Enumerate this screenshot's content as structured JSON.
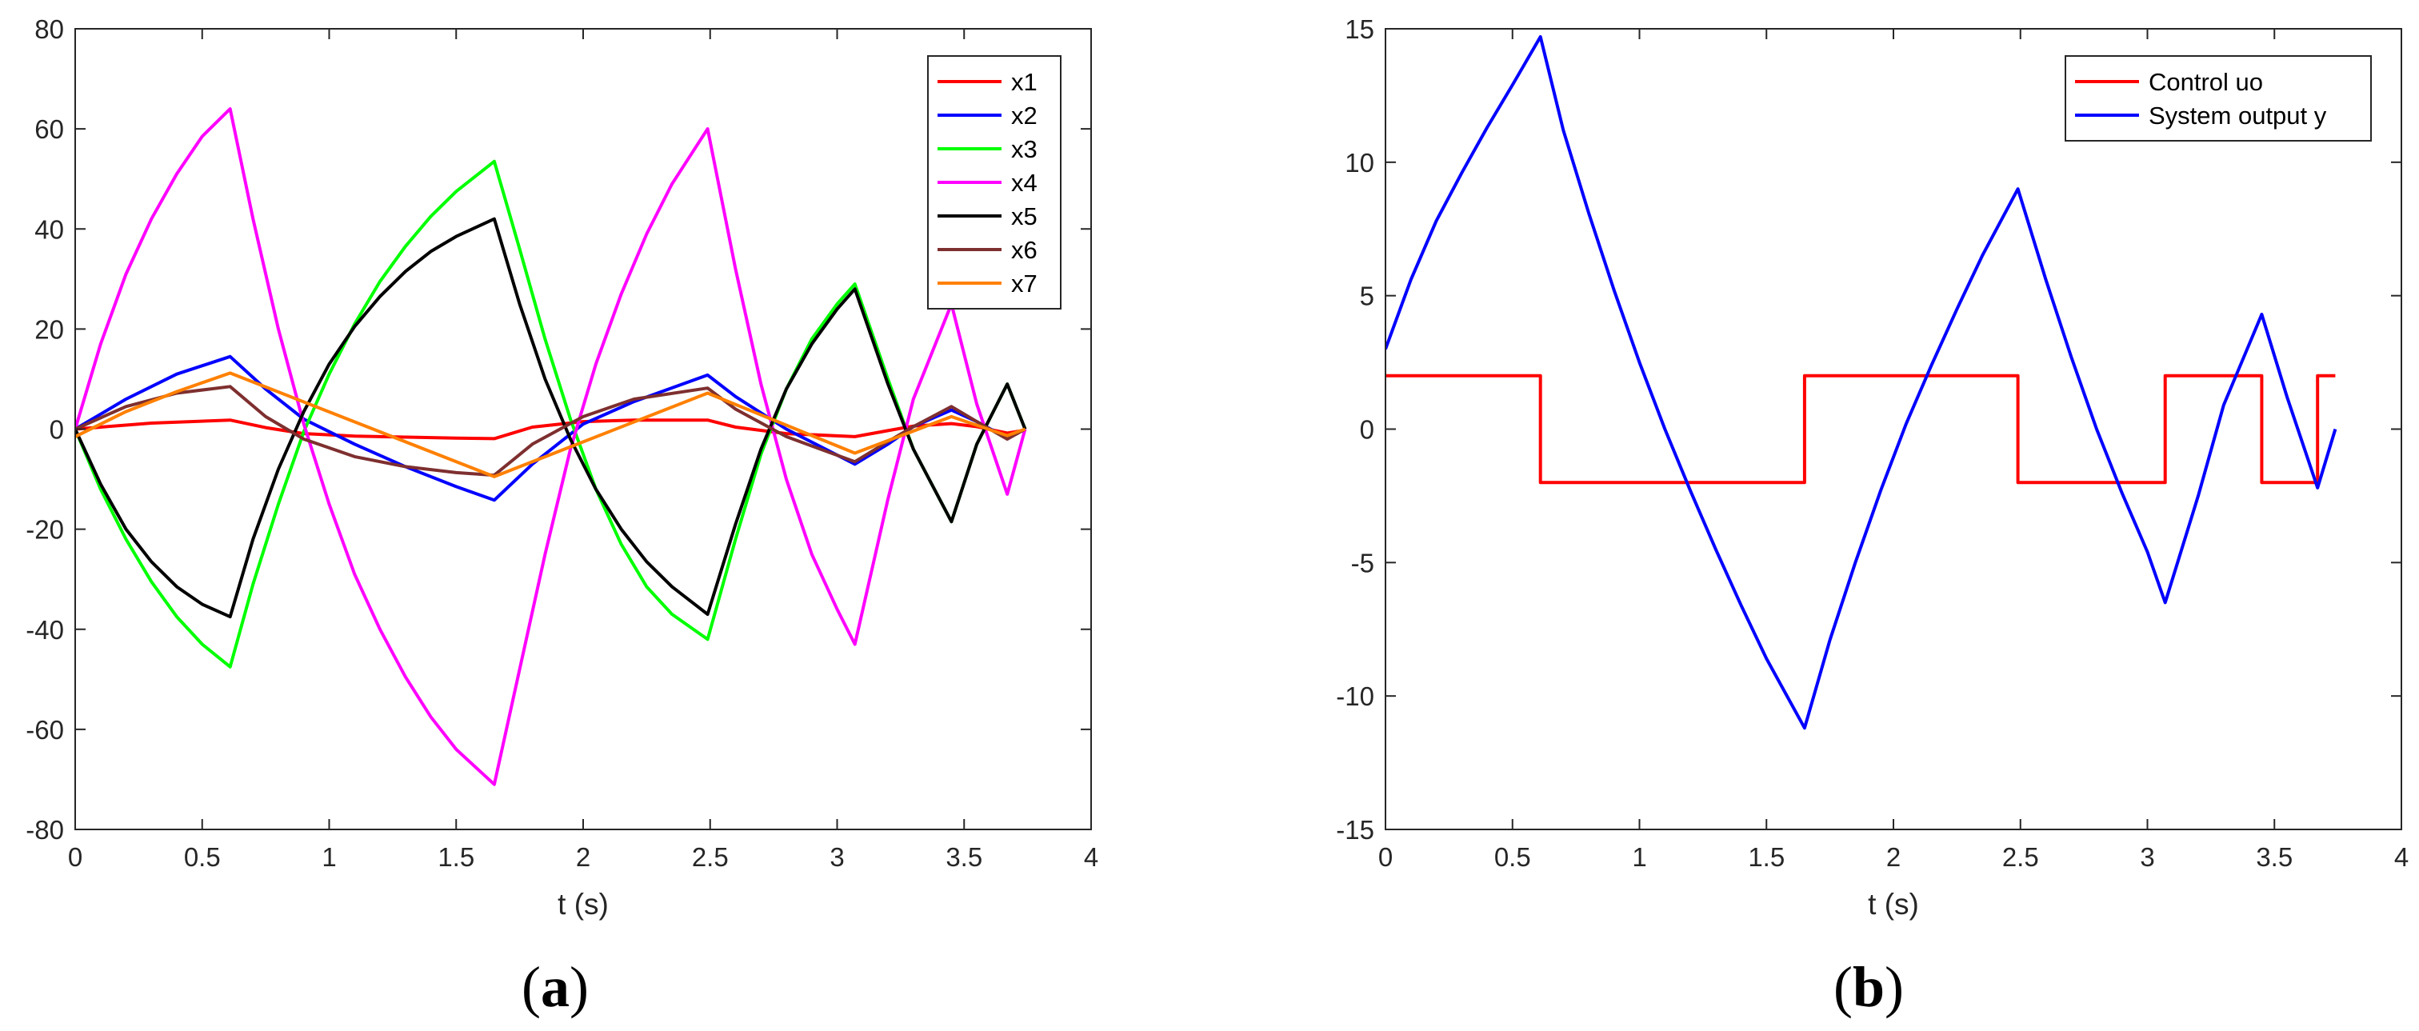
{
  "chart_data": [
    {
      "type": "line",
      "panel_label": "(a)",
      "title": "",
      "xlabel": "t (s)",
      "ylabel": "",
      "xlim": [
        0,
        4
      ],
      "ylim": [
        -80,
        80
      ],
      "xticks": [
        0,
        0.5,
        1,
        1.5,
        2,
        2.5,
        3,
        3.5,
        4
      ],
      "xtick_labels": [
        "0",
        "0.5",
        "1",
        "1.5",
        "2",
        "2.5",
        "3",
        "3.5",
        "4"
      ],
      "yticks": [
        -80,
        -60,
        -40,
        -20,
        0,
        20,
        40,
        60,
        80
      ],
      "ytick_labels": [
        "-80",
        "-60",
        "-40",
        "-20",
        "0",
        "20",
        "40",
        "60",
        "80"
      ],
      "grid": false,
      "legend_position": "top-right",
      "series": [
        {
          "name": "x1",
          "color": "#ff0000",
          "points": [
            [
              0,
              0
            ],
            [
              0.3,
              1.2
            ],
            [
              0.61,
              1.8
            ],
            [
              0.75,
              0.3
            ],
            [
              0.9,
              -0.9
            ],
            [
              1.1,
              -1.4
            ],
            [
              1.3,
              -1.6
            ],
            [
              1.5,
              -1.8
            ],
            [
              1.65,
              -1.9
            ],
            [
              1.8,
              0.4
            ],
            [
              2.0,
              1.5
            ],
            [
              2.2,
              1.8
            ],
            [
              2.49,
              1.8
            ],
            [
              2.6,
              0.4
            ],
            [
              2.8,
              -0.9
            ],
            [
              3.07,
              -1.5
            ],
            [
              3.2,
              -0.3
            ],
            [
              3.3,
              0.6
            ],
            [
              3.45,
              1.1
            ],
            [
              3.55,
              0.5
            ],
            [
              3.67,
              -0.8
            ],
            [
              3.74,
              -0.2
            ]
          ]
        },
        {
          "name": "x2",
          "color": "#0000ff",
          "points": [
            [
              0,
              0
            ],
            [
              0.2,
              6
            ],
            [
              0.4,
              11
            ],
            [
              0.61,
              14.5
            ],
            [
              0.75,
              8
            ],
            [
              0.9,
              2
            ],
            [
              1.1,
              -3
            ],
            [
              1.3,
              -7.5
            ],
            [
              1.5,
              -11.5
            ],
            [
              1.65,
              -14.2
            ],
            [
              1.8,
              -7
            ],
            [
              2.0,
              1
            ],
            [
              2.2,
              5.5
            ],
            [
              2.49,
              10.8
            ],
            [
              2.6,
              6.5
            ],
            [
              2.8,
              0
            ],
            [
              3.07,
              -7
            ],
            [
              3.2,
              -3
            ],
            [
              3.3,
              0.5
            ],
            [
              3.45,
              3.8
            ],
            [
              3.55,
              1.5
            ],
            [
              3.67,
              -1.8
            ],
            [
              3.74,
              0
            ]
          ]
        },
        {
          "name": "x3",
          "color": "#00ff00",
          "points": [
            [
              0,
              0
            ],
            [
              0.1,
              -12
            ],
            [
              0.2,
              -22
            ],
            [
              0.3,
              -30.5
            ],
            [
              0.4,
              -37.5
            ],
            [
              0.5,
              -43
            ],
            [
              0.61,
              -47.5
            ],
            [
              0.7,
              -31
            ],
            [
              0.8,
              -15
            ],
            [
              0.9,
              -0.5
            ],
            [
              1.0,
              11
            ],
            [
              1.1,
              21
            ],
            [
              1.2,
              29.5
            ],
            [
              1.3,
              36.5
            ],
            [
              1.4,
              42.5
            ],
            [
              1.5,
              47.5
            ],
            [
              1.65,
              53.5
            ],
            [
              1.75,
              36
            ],
            [
              1.85,
              18
            ],
            [
              1.95,
              2
            ],
            [
              2.05,
              -12
            ],
            [
              2.15,
              -23
            ],
            [
              2.25,
              -31.5
            ],
            [
              2.35,
              -37
            ],
            [
              2.49,
              -42
            ],
            [
              2.6,
              -22
            ],
            [
              2.7,
              -5
            ],
            [
              2.8,
              8
            ],
            [
              2.9,
              18
            ],
            [
              3.0,
              25
            ],
            [
              3.07,
              29
            ],
            [
              3.2,
              10
            ],
            [
              3.3,
              -4
            ],
            [
              3.45,
              -18.5
            ],
            [
              3.55,
              -3
            ],
            [
              3.67,
              9
            ],
            [
              3.74,
              0
            ]
          ]
        },
        {
          "name": "x4",
          "color": "#ff00ff",
          "points": [
            [
              0,
              0
            ],
            [
              0.1,
              17
            ],
            [
              0.2,
              31
            ],
            [
              0.3,
              42
            ],
            [
              0.4,
              51
            ],
            [
              0.5,
              58.5
            ],
            [
              0.61,
              64
            ],
            [
              0.7,
              42
            ],
            [
              0.8,
              20
            ],
            [
              0.9,
              1
            ],
            [
              1.0,
              -15
            ],
            [
              1.1,
              -29
            ],
            [
              1.2,
              -40
            ],
            [
              1.3,
              -49.5
            ],
            [
              1.4,
              -57.5
            ],
            [
              1.5,
              -64
            ],
            [
              1.65,
              -71
            ],
            [
              1.75,
              -48
            ],
            [
              1.85,
              -25
            ],
            [
              1.95,
              -4
            ],
            [
              2.05,
              13
            ],
            [
              2.15,
              27
            ],
            [
              2.25,
              39
            ],
            [
              2.35,
              49
            ],
            [
              2.49,
              60
            ],
            [
              2.6,
              32
            ],
            [
              2.7,
              9
            ],
            [
              2.8,
              -10
            ],
            [
              2.9,
              -25
            ],
            [
              3.0,
              -36
            ],
            [
              3.07,
              -43
            ],
            [
              3.2,
              -14
            ],
            [
              3.3,
              6
            ],
            [
              3.45,
              25
            ],
            [
              3.55,
              5
            ],
            [
              3.67,
              -13
            ],
            [
              3.74,
              0
            ]
          ]
        },
        {
          "name": "x5",
          "color": "#000000",
          "points": [
            [
              0,
              0
            ],
            [
              0.1,
              -11
            ],
            [
              0.2,
              -20
            ],
            [
              0.3,
              -26.5
            ],
            [
              0.4,
              -31.5
            ],
            [
              0.5,
              -35
            ],
            [
              0.61,
              -37.5
            ],
            [
              0.7,
              -22
            ],
            [
              0.8,
              -8
            ],
            [
              0.9,
              3.5
            ],
            [
              1.0,
              13
            ],
            [
              1.1,
              20.5
            ],
            [
              1.2,
              26.5
            ],
            [
              1.3,
              31.5
            ],
            [
              1.4,
              35.5
            ],
            [
              1.5,
              38.5
            ],
            [
              1.65,
              42
            ],
            [
              1.75,
              25
            ],
            [
              1.85,
              10
            ],
            [
              1.95,
              -2
            ],
            [
              2.05,
              -12
            ],
            [
              2.15,
              -20
            ],
            [
              2.25,
              -26.5
            ],
            [
              2.35,
              -31.5
            ],
            [
              2.49,
              -37
            ],
            [
              2.6,
              -19
            ],
            [
              2.7,
              -4
            ],
            [
              2.8,
              8
            ],
            [
              2.9,
              17
            ],
            [
              3.0,
              24
            ],
            [
              3.07,
              28
            ],
            [
              3.2,
              9
            ],
            [
              3.3,
              -4
            ],
            [
              3.45,
              -18.5
            ],
            [
              3.55,
              -3
            ],
            [
              3.67,
              9
            ],
            [
              3.74,
              0
            ]
          ]
        },
        {
          "name": "x6",
          "color": "#7e2f2f",
          "points": [
            [
              0,
              0
            ],
            [
              0.2,
              4.5
            ],
            [
              0.4,
              7.2
            ],
            [
              0.61,
              8.5
            ],
            [
              0.75,
              2.5
            ],
            [
              0.9,
              -2
            ],
            [
              1.1,
              -5.5
            ],
            [
              1.3,
              -7.5
            ],
            [
              1.5,
              -8.7
            ],
            [
              1.65,
              -9.2
            ],
            [
              1.8,
              -3
            ],
            [
              2.0,
              2.5
            ],
            [
              2.2,
              6
            ],
            [
              2.49,
              8.2
            ],
            [
              2.6,
              4
            ],
            [
              2.8,
              -1.5
            ],
            [
              3.07,
              -6.5
            ],
            [
              3.2,
              -2.5
            ],
            [
              3.3,
              0.5
            ],
            [
              3.45,
              4.5
            ],
            [
              3.55,
              1.5
            ],
            [
              3.67,
              -2
            ],
            [
              3.74,
              0
            ]
          ]
        },
        {
          "name": "x7",
          "color": "#ff8000",
          "points": [
            [
              0,
              -1.5
            ],
            [
              0.2,
              3.5
            ],
            [
              0.4,
              7.5
            ],
            [
              0.61,
              11.2
            ],
            [
              1.65,
              -9.5
            ],
            [
              2.49,
              7.2
            ],
            [
              3.07,
              -4.8
            ],
            [
              3.45,
              2.5
            ],
            [
              3.67,
              -1.3
            ],
            [
              3.74,
              0
            ]
          ]
        }
      ]
    },
    {
      "type": "line",
      "panel_label": "(b)",
      "title": "",
      "xlabel": "t (s)",
      "ylabel": "",
      "xlim": [
        0,
        4
      ],
      "ylim": [
        -15,
        15
      ],
      "xticks": [
        0,
        0.5,
        1,
        1.5,
        2,
        2.5,
        3,
        3.5,
        4
      ],
      "xtick_labels": [
        "0",
        "0.5",
        "1",
        "1.5",
        "2",
        "2.5",
        "3",
        "3.5",
        "4"
      ],
      "yticks": [
        -15,
        -10,
        -5,
        0,
        5,
        10,
        15
      ],
      "ytick_labels": [
        "-15",
        "-10",
        "-5",
        "0",
        "5",
        "10",
        "15"
      ],
      "grid": false,
      "legend_position": "top-right",
      "series": [
        {
          "name": "Control uo",
          "color": "#ff0000",
          "points": [
            [
              0,
              2
            ],
            [
              0.61,
              2
            ],
            [
              0.61,
              -2
            ],
            [
              1.65,
              -2
            ],
            [
              1.65,
              2
            ],
            [
              2.49,
              2
            ],
            [
              2.49,
              -2
            ],
            [
              3.07,
              -2
            ],
            [
              3.07,
              2
            ],
            [
              3.45,
              2
            ],
            [
              3.45,
              -2
            ],
            [
              3.67,
              -2
            ],
            [
              3.67,
              2
            ],
            [
              3.74,
              2
            ]
          ]
        },
        {
          "name": "System output y",
          "color": "#0000ff",
          "points": [
            [
              0,
              3
            ],
            [
              0.1,
              5.6
            ],
            [
              0.2,
              7.8
            ],
            [
              0.3,
              9.6
            ],
            [
              0.4,
              11.3
            ],
            [
              0.5,
              12.9
            ],
            [
              0.61,
              14.7
            ],
            [
              0.7,
              11.2
            ],
            [
              0.8,
              8.1
            ],
            [
              0.9,
              5.2
            ],
            [
              1.0,
              2.5
            ],
            [
              1.1,
              0
            ],
            [
              1.2,
              -2.3
            ],
            [
              1.3,
              -4.5
            ],
            [
              1.4,
              -6.6
            ],
            [
              1.5,
              -8.6
            ],
            [
              1.65,
              -11.2
            ],
            [
              1.75,
              -7.9
            ],
            [
              1.85,
              -5
            ],
            [
              1.95,
              -2.3
            ],
            [
              2.05,
              0.2
            ],
            [
              2.15,
              2.4
            ],
            [
              2.25,
              4.5
            ],
            [
              2.35,
              6.5
            ],
            [
              2.49,
              9
            ],
            [
              2.6,
              5.6
            ],
            [
              2.7,
              2.7
            ],
            [
              2.8,
              0
            ],
            [
              2.9,
              -2.4
            ],
            [
              3.0,
              -4.6
            ],
            [
              3.07,
              -6.5
            ],
            [
              3.2,
              -2.5
            ],
            [
              3.3,
              0.9
            ],
            [
              3.45,
              4.3
            ],
            [
              3.55,
              1.2
            ],
            [
              3.67,
              -2.2
            ],
            [
              3.74,
              0
            ]
          ]
        }
      ]
    }
  ]
}
